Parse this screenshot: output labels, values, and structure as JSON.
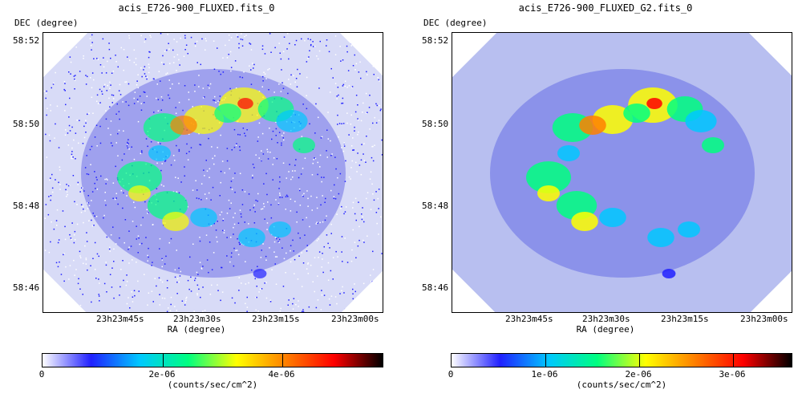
{
  "panels": [
    {
      "title": "acis_E726-900_FLUXED.fits_0",
      "y_axis_label": "DEC (degree)",
      "x_axis_label": "RA (degree)",
      "y_ticks": [
        "58:52",
        "58:50",
        "58:48",
        "58:46"
      ],
      "x_ticks": [
        "23h23m45s",
        "23h23m30s",
        "23h23m15s",
        "23h23m00s"
      ],
      "colorbar_ticks": [
        "0",
        "2e-06",
        "4e-06"
      ],
      "colorbar_unit": "(counts/sec/cm^2)",
      "style": "raw"
    },
    {
      "title": "acis_E726-900_FLUXED_G2.fits_0",
      "y_axis_label": "DEC (degree)",
      "x_axis_label": "RA (degree)",
      "y_ticks": [
        "58:52",
        "58:50",
        "58:48",
        "58:46"
      ],
      "x_ticks": [
        "23h23m45s",
        "23h23m30s",
        "23h23m15s",
        "23h23m00s"
      ],
      "colorbar_ticks": [
        "0",
        "1e-06",
        "2e-06",
        "3e-06"
      ],
      "colorbar_unit": "(counts/sec/cm^2)",
      "style": "smoothed"
    }
  ],
  "colors": {
    "colormap": [
      "#ffffff",
      "#2020ff",
      "#00c8ff",
      "#00ff80",
      "#ffff00",
      "#ff8000",
      "#ff0000",
      "#000000"
    ],
    "raw_background": "#3030e0",
    "smoothed_background": "#b8bff0"
  }
}
